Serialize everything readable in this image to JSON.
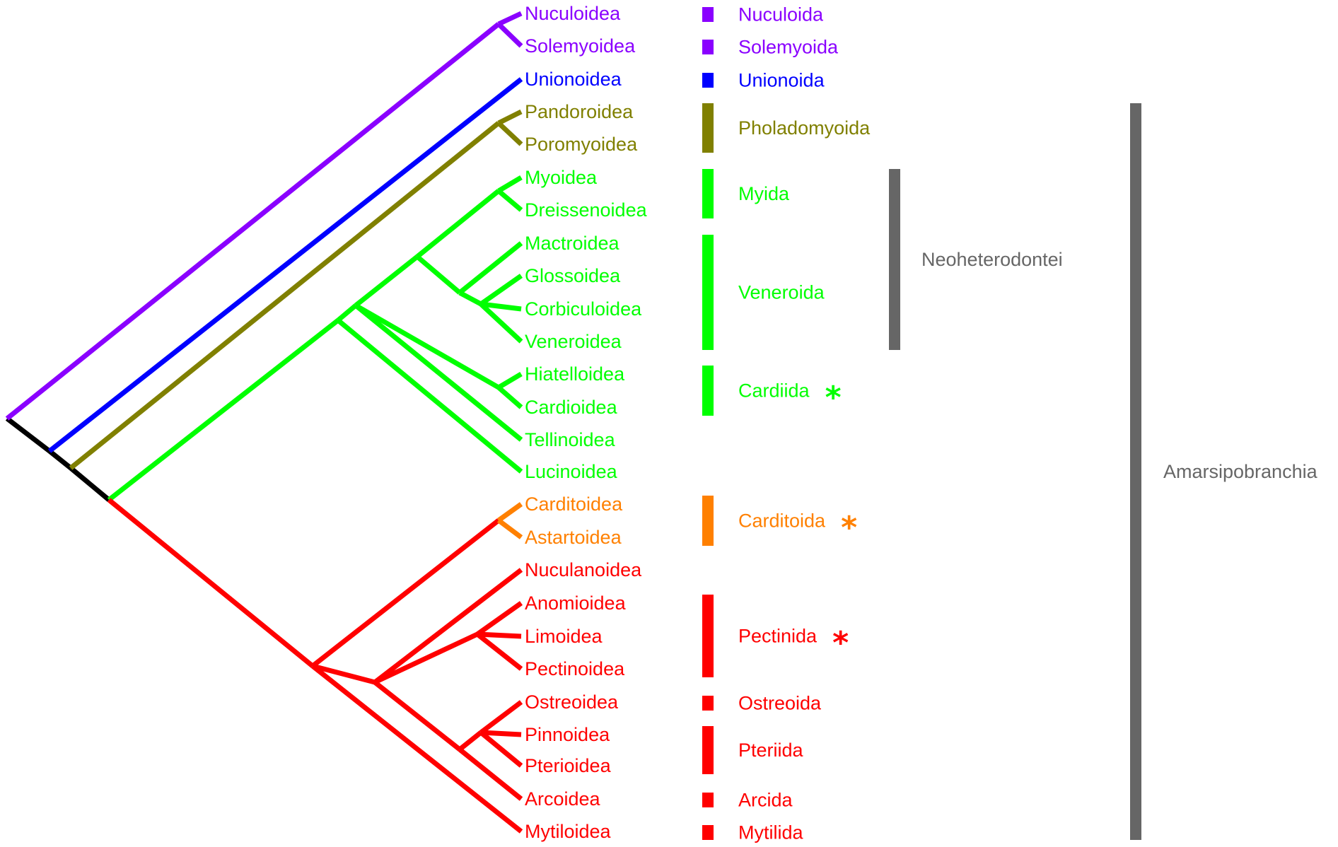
{
  "colors": {
    "root": "#000000",
    "nuculoida": "#8A00FF",
    "unionoida": "#0000FF",
    "pholadomyoida": "#808000",
    "heterodonta": "#00FF00",
    "carditoida": "#FF8000",
    "pteriomorphia": "#FF0000",
    "clade_bar": "#666666",
    "clade_text": "#666666"
  },
  "taxa": [
    {
      "name": "Nuculoidea",
      "color": "nuculoida"
    },
    {
      "name": "Solemyoidea",
      "color": "nuculoida"
    },
    {
      "name": "Unionoidea",
      "color": "unionoida"
    },
    {
      "name": "Pandoroidea",
      "color": "pholadomyoida"
    },
    {
      "name": "Poromyoidea",
      "color": "pholadomyoida"
    },
    {
      "name": "Myoidea",
      "color": "heterodonta"
    },
    {
      "name": "Dreissenoidea",
      "color": "heterodonta"
    },
    {
      "name": "Mactroidea",
      "color": "heterodonta"
    },
    {
      "name": "Glossoidea",
      "color": "heterodonta"
    },
    {
      "name": "Corbiculoidea",
      "color": "heterodonta"
    },
    {
      "name": "Veneroidea",
      "color": "heterodonta"
    },
    {
      "name": "Hiatelloidea",
      "color": "heterodonta"
    },
    {
      "name": "Cardioidea",
      "color": "heterodonta"
    },
    {
      "name": "Tellinoidea",
      "color": "heterodonta"
    },
    {
      "name": "Lucinoidea",
      "color": "heterodonta"
    },
    {
      "name": "Carditoidea",
      "color": "carditoida"
    },
    {
      "name": "Astartoidea",
      "color": "carditoida"
    },
    {
      "name": "Nuculanoidea",
      "color": "pteriomorphia"
    },
    {
      "name": "Anomioidea",
      "color": "pteriomorphia"
    },
    {
      "name": "Limoidea",
      "color": "pteriomorphia"
    },
    {
      "name": "Pectinoidea",
      "color": "pteriomorphia"
    },
    {
      "name": "Ostreoidea",
      "color": "pteriomorphia"
    },
    {
      "name": "Pinnoidea",
      "color": "pteriomorphia"
    },
    {
      "name": "Pterioidea",
      "color": "pteriomorphia"
    },
    {
      "name": "Arcoidea",
      "color": "pteriomorphia"
    },
    {
      "name": "Mytiloidea",
      "color": "pteriomorphia"
    }
  ],
  "orders": [
    {
      "name": "Nuculoida",
      "color": "nuculoida",
      "first": 0,
      "last": 0,
      "star": false
    },
    {
      "name": "Solemyoida",
      "color": "nuculoida",
      "first": 1,
      "last": 1,
      "star": false
    },
    {
      "name": "Unionoida",
      "color": "unionoida",
      "first": 2,
      "last": 2,
      "star": false
    },
    {
      "name": "Pholadomyoida",
      "color": "pholadomyoida",
      "first": 3,
      "last": 4,
      "star": false
    },
    {
      "name": "Myida",
      "color": "heterodonta",
      "first": 5,
      "last": 6,
      "star": false
    },
    {
      "name": "Veneroida",
      "color": "heterodonta",
      "first": 7,
      "last": 10,
      "star": false
    },
    {
      "name": "Cardiida",
      "color": "heterodonta",
      "first": 11,
      "last": 12,
      "star": true
    },
    {
      "name": "Carditoida",
      "color": "carditoida",
      "first": 15,
      "last": 16,
      "star": true
    },
    {
      "name": "Pectinida",
      "color": "pteriomorphia",
      "first": 18,
      "last": 20,
      "star": true
    },
    {
      "name": "Ostreoida",
      "color": "pteriomorphia",
      "first": 21,
      "last": 21,
      "star": false
    },
    {
      "name": "Pteriida",
      "color": "pteriomorphia",
      "first": 22,
      "last": 23,
      "star": false
    },
    {
      "name": "Arcida",
      "color": "pteriomorphia",
      "first": 24,
      "last": 24,
      "star": false
    },
    {
      "name": "Mytilida",
      "color": "pteriomorphia",
      "first": 25,
      "last": 25,
      "star": false
    }
  ],
  "star_symbol": "*",
  "clades": [
    {
      "name": "Neoheterodontei",
      "first": 5,
      "last": 10
    },
    {
      "name": "Amarsipobranchia",
      "first": 3,
      "last": 25
    }
  ]
}
